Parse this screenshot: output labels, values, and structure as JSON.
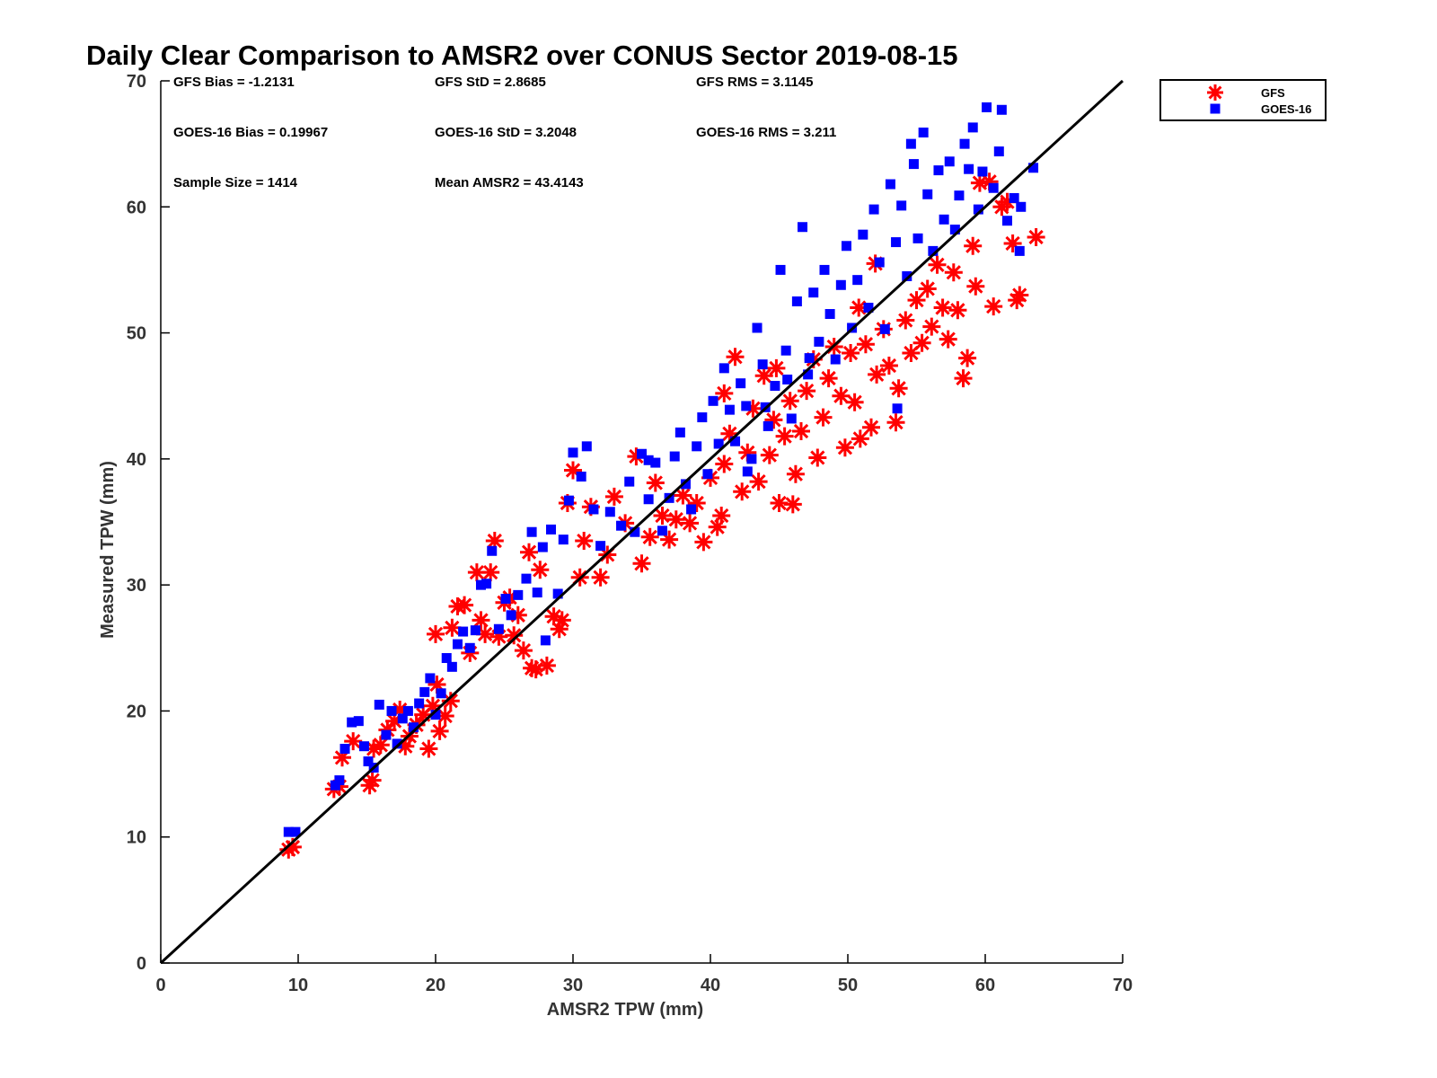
{
  "chart_data": {
    "type": "scatter",
    "title": "Daily Clear Comparison to AMSR2 over CONUS Sector 2019-08-15",
    "xlabel": "AMSR2 TPW (mm)",
    "ylabel": "Measured TPW (mm)",
    "xlim": [
      0,
      70
    ],
    "ylim": [
      0,
      70
    ],
    "xticks": [
      "0",
      "10",
      "20",
      "30",
      "40",
      "50",
      "60",
      "70"
    ],
    "yticks": [
      "0",
      "10",
      "20",
      "30",
      "40",
      "50",
      "60",
      "70"
    ],
    "grid": false,
    "legend_position": "outside-top-right",
    "reference_line": {
      "from": [
        0,
        0
      ],
      "to": [
        70,
        70
      ],
      "color": "#000000"
    },
    "stats": [
      [
        "GFS Bias = -1.2131",
        "GFS StD = 2.8685",
        "GFS RMS = 3.1145"
      ],
      [
        "GOES-16 Bias = 0.19967",
        "GOES-16 StD = 3.2048",
        "GOES-16 RMS = 3.211"
      ],
      [
        "Sample Size = 1414",
        "Mean AMSR2 = 43.4143"
      ]
    ],
    "series": [
      {
        "name": "GFS",
        "marker": "asterisk",
        "color": "#ff0000",
        "points": [
          [
            9.3,
            9.0
          ],
          [
            9.6,
            9.2
          ],
          [
            12.6,
            13.8
          ],
          [
            13.0,
            14.0
          ],
          [
            13.2,
            16.3
          ],
          [
            14.0,
            17.6
          ],
          [
            15.2,
            14.1
          ],
          [
            15.4,
            14.5
          ],
          [
            15.5,
            17.0
          ],
          [
            16.0,
            17.3
          ],
          [
            16.5,
            18.5
          ],
          [
            17.0,
            19.2
          ],
          [
            17.4,
            20.1
          ],
          [
            17.8,
            17.2
          ],
          [
            18.1,
            18.0
          ],
          [
            18.6,
            18.9
          ],
          [
            19.1,
            19.7
          ],
          [
            19.5,
            17.0
          ],
          [
            19.8,
            20.4
          ],
          [
            20.1,
            22.1
          ],
          [
            20.3,
            18.4
          ],
          [
            20.7,
            19.6
          ],
          [
            21.1,
            20.8
          ],
          [
            20.0,
            26.1
          ],
          [
            21.2,
            26.6
          ],
          [
            21.6,
            28.3
          ],
          [
            22.1,
            28.4
          ],
          [
            22.5,
            24.6
          ],
          [
            23.0,
            31.0
          ],
          [
            23.3,
            27.2
          ],
          [
            23.6,
            26.1
          ],
          [
            24.0,
            31.0
          ],
          [
            24.3,
            33.5
          ],
          [
            24.6,
            25.9
          ],
          [
            25.0,
            28.6
          ],
          [
            25.4,
            29.0
          ],
          [
            25.7,
            26.0
          ],
          [
            26.0,
            27.6
          ],
          [
            26.4,
            24.8
          ],
          [
            26.8,
            32.6
          ],
          [
            27.0,
            23.4
          ],
          [
            27.3,
            23.3
          ],
          [
            27.6,
            31.2
          ],
          [
            28.1,
            23.6
          ],
          [
            28.6,
            27.5
          ],
          [
            29.0,
            26.5
          ],
          [
            29.2,
            27.2
          ],
          [
            29.6,
            36.5
          ],
          [
            30.0,
            39.1
          ],
          [
            30.5,
            30.6
          ],
          [
            30.8,
            33.5
          ],
          [
            31.3,
            36.2
          ],
          [
            32.0,
            30.6
          ],
          [
            32.5,
            32.4
          ],
          [
            33.0,
            37.0
          ],
          [
            33.8,
            34.9
          ],
          [
            34.6,
            40.2
          ],
          [
            35.0,
            31.7
          ],
          [
            35.6,
            33.8
          ],
          [
            36.0,
            38.1
          ],
          [
            36.5,
            35.5
          ],
          [
            37.0,
            33.6
          ],
          [
            37.5,
            35.2
          ],
          [
            38.0,
            37.1
          ],
          [
            38.5,
            34.9
          ],
          [
            39.0,
            36.5
          ],
          [
            39.5,
            33.4
          ],
          [
            40.0,
            38.5
          ],
          [
            40.5,
            34.6
          ],
          [
            40.8,
            35.5
          ],
          [
            41.0,
            39.6
          ],
          [
            41.4,
            42.0
          ],
          [
            41.0,
            45.2
          ],
          [
            41.8,
            48.1
          ],
          [
            42.3,
            37.4
          ],
          [
            42.7,
            40.5
          ],
          [
            43.1,
            44.0
          ],
          [
            43.5,
            38.2
          ],
          [
            43.9,
            46.6
          ],
          [
            44.3,
            40.3
          ],
          [
            44.6,
            43.1
          ],
          [
            45.0,
            36.5
          ],
          [
            45.4,
            41.8
          ],
          [
            45.8,
            44.6
          ],
          [
            46.2,
            38.8
          ],
          [
            46.0,
            36.4
          ],
          [
            46.6,
            42.2
          ],
          [
            47.0,
            45.4
          ],
          [
            47.5,
            47.9
          ],
          [
            47.8,
            40.1
          ],
          [
            48.2,
            43.3
          ],
          [
            48.6,
            46.4
          ],
          [
            49.0,
            48.9
          ],
          [
            49.5,
            45.0
          ],
          [
            49.8,
            40.9
          ],
          [
            50.2,
            48.4
          ],
          [
            50.5,
            44.5
          ],
          [
            50.9,
            41.6
          ],
          [
            51.3,
            49.1
          ],
          [
            51.7,
            42.5
          ],
          [
            52.1,
            46.7
          ],
          [
            52.6,
            50.3
          ],
          [
            53.0,
            47.4
          ],
          [
            53.5,
            42.9
          ],
          [
            53.7,
            45.6
          ],
          [
            54.2,
            51.0
          ],
          [
            54.6,
            48.4
          ],
          [
            55.0,
            52.6
          ],
          [
            55.4,
            49.2
          ],
          [
            55.8,
            53.5
          ],
          [
            56.1,
            50.5
          ],
          [
            56.5,
            55.4
          ],
          [
            56.9,
            52.0
          ],
          [
            57.3,
            49.5
          ],
          [
            57.7,
            54.8
          ],
          [
            58.0,
            51.8
          ],
          [
            58.4,
            46.4
          ],
          [
            58.7,
            48.0
          ],
          [
            59.1,
            56.9
          ],
          [
            59.3,
            53.7
          ],
          [
            59.6,
            61.9
          ],
          [
            60.3,
            62.0
          ],
          [
            60.6,
            52.1
          ],
          [
            61.2,
            60.0
          ],
          [
            61.6,
            60.4
          ],
          [
            62.0,
            57.1
          ],
          [
            62.3,
            52.6
          ],
          [
            62.5,
            53.0
          ],
          [
            63.7,
            57.6
          ],
          [
            52.0,
            55.5
          ],
          [
            50.8,
            52.0
          ],
          [
            44.8,
            47.2
          ]
        ]
      },
      {
        "name": "GOES-16",
        "marker": "square",
        "color": "#0000ff",
        "points": [
          [
            9.3,
            10.4
          ],
          [
            9.8,
            10.4
          ],
          [
            12.7,
            14.1
          ],
          [
            13.0,
            14.5
          ],
          [
            13.4,
            17.0
          ],
          [
            13.9,
            19.1
          ],
          [
            14.4,
            19.2
          ],
          [
            14.8,
            17.2
          ],
          [
            15.1,
            16.0
          ],
          [
            15.5,
            15.5
          ],
          [
            15.9,
            20.5
          ],
          [
            16.4,
            18.1
          ],
          [
            16.8,
            20.0
          ],
          [
            17.2,
            17.4
          ],
          [
            17.6,
            19.4
          ],
          [
            18.0,
            20.0
          ],
          [
            18.4,
            18.7
          ],
          [
            18.8,
            20.6
          ],
          [
            19.2,
            21.5
          ],
          [
            19.6,
            22.6
          ],
          [
            20.0,
            19.7
          ],
          [
            20.4,
            21.4
          ],
          [
            20.8,
            24.2
          ],
          [
            21.2,
            23.5
          ],
          [
            21.6,
            25.3
          ],
          [
            22.0,
            26.3
          ],
          [
            22.5,
            25.0
          ],
          [
            22.9,
            26.4
          ],
          [
            23.3,
            30.0
          ],
          [
            23.7,
            30.1
          ],
          [
            24.1,
            32.7
          ],
          [
            24.6,
            26.5
          ],
          [
            25.1,
            28.9
          ],
          [
            25.5,
            27.6
          ],
          [
            26.0,
            29.2
          ],
          [
            26.6,
            30.5
          ],
          [
            27.0,
            34.2
          ],
          [
            27.4,
            29.4
          ],
          [
            27.8,
            33.0
          ],
          [
            28.0,
            25.6
          ],
          [
            28.4,
            34.4
          ],
          [
            28.9,
            29.3
          ],
          [
            29.3,
            33.6
          ],
          [
            29.7,
            36.7
          ],
          [
            30.0,
            40.5
          ],
          [
            30.6,
            38.6
          ],
          [
            31.0,
            41.0
          ],
          [
            31.5,
            36.0
          ],
          [
            32.0,
            33.1
          ],
          [
            32.7,
            35.8
          ],
          [
            33.5,
            34.7
          ],
          [
            34.1,
            38.2
          ],
          [
            34.5,
            34.2
          ],
          [
            35.0,
            40.4
          ],
          [
            35.5,
            36.8
          ],
          [
            36.0,
            39.7
          ],
          [
            36.5,
            34.3
          ],
          [
            37.0,
            36.9
          ],
          [
            37.4,
            40.2
          ],
          [
            37.8,
            42.1
          ],
          [
            38.2,
            38.0
          ],
          [
            38.6,
            36.0
          ],
          [
            39.0,
            41.0
          ],
          [
            39.4,
            43.3
          ],
          [
            39.8,
            38.8
          ],
          [
            40.2,
            44.6
          ],
          [
            40.6,
            41.2
          ],
          [
            41.0,
            47.2
          ],
          [
            41.4,
            43.9
          ],
          [
            41.8,
            41.4
          ],
          [
            42.2,
            46.0
          ],
          [
            42.6,
            44.2
          ],
          [
            43.0,
            40.0
          ],
          [
            43.4,
            50.4
          ],
          [
            43.8,
            47.5
          ],
          [
            44.2,
            42.6
          ],
          [
            44.7,
            45.8
          ],
          [
            45.1,
            55.0
          ],
          [
            45.5,
            48.6
          ],
          [
            45.9,
            43.2
          ],
          [
            46.3,
            52.5
          ],
          [
            46.7,
            58.4
          ],
          [
            47.1,
            46.7
          ],
          [
            47.5,
            53.2
          ],
          [
            47.9,
            49.3
          ],
          [
            48.3,
            55.0
          ],
          [
            48.7,
            51.5
          ],
          [
            49.1,
            47.9
          ],
          [
            49.5,
            53.8
          ],
          [
            49.9,
            56.9
          ],
          [
            50.3,
            50.4
          ],
          [
            50.7,
            54.2
          ],
          [
            51.1,
            57.8
          ],
          [
            51.5,
            52.0
          ],
          [
            51.9,
            59.8
          ],
          [
            52.3,
            55.6
          ],
          [
            52.7,
            50.3
          ],
          [
            53.1,
            61.8
          ],
          [
            53.5,
            57.2
          ],
          [
            53.9,
            60.1
          ],
          [
            54.3,
            54.5
          ],
          [
            54.6,
            65.0
          ],
          [
            54.8,
            63.4
          ],
          [
            55.1,
            57.5
          ],
          [
            55.5,
            65.9
          ],
          [
            55.8,
            61.0
          ],
          [
            56.2,
            56.5
          ],
          [
            56.6,
            62.9
          ],
          [
            57.0,
            59.0
          ],
          [
            57.4,
            63.6
          ],
          [
            57.8,
            58.2
          ],
          [
            58.1,
            60.9
          ],
          [
            58.5,
            65.0
          ],
          [
            58.8,
            63.0
          ],
          [
            59.1,
            66.3
          ],
          [
            59.5,
            59.8
          ],
          [
            59.8,
            62.8
          ],
          [
            60.1,
            67.9
          ],
          [
            60.6,
            61.5
          ],
          [
            61.0,
            64.4
          ],
          [
            61.2,
            67.7
          ],
          [
            61.6,
            58.9
          ],
          [
            62.1,
            60.7
          ],
          [
            62.5,
            56.5
          ],
          [
            62.6,
            60.0
          ],
          [
            63.5,
            63.1
          ],
          [
            42.7,
            39.0
          ],
          [
            44.0,
            44.1
          ],
          [
            45.6,
            46.3
          ],
          [
            47.2,
            48.0
          ],
          [
            53.6,
            44.0
          ],
          [
            35.5,
            39.9
          ]
        ]
      }
    ]
  }
}
